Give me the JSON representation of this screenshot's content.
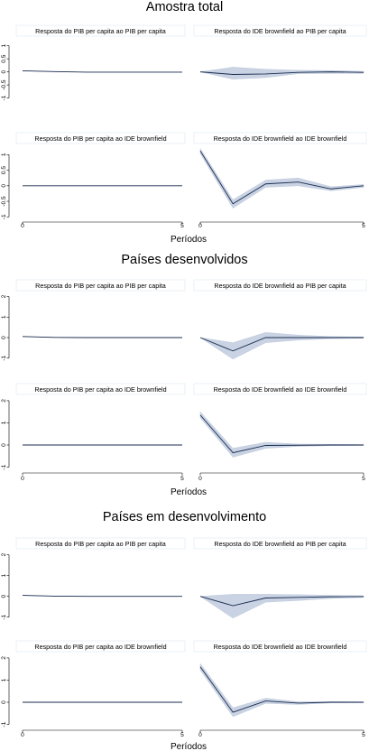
{
  "chart_data": [
    {
      "group_title": "Amostra total",
      "xlabel": "Períodos",
      "x_ticks": [
        0,
        5
      ],
      "panels": [
        {
          "type": "line",
          "title": "Resposta do PIB per capita ao PIB per capita",
          "yticks": [
            -1,
            -0.5,
            0,
            0.5,
            1
          ],
          "ylim": [
            -1.05,
            1.3
          ],
          "x": [
            0,
            1,
            2,
            3,
            4,
            5
          ],
          "values": [
            0.04,
            0.01,
            -0.01,
            -0.01,
            -0.01,
            -0.01
          ],
          "lower": [
            0.04,
            0.01,
            -0.01,
            -0.01,
            -0.01,
            -0.01
          ],
          "upper": [
            0.04,
            0.01,
            -0.01,
            -0.01,
            -0.01,
            -0.01
          ]
        },
        {
          "type": "line",
          "title": "Resposta do IDE brownfield ao PIB per capita",
          "ylim": [
            -1.05,
            1.3
          ],
          "x": [
            0,
            1,
            2,
            3,
            4,
            5
          ],
          "values": [
            0,
            -0.1,
            -0.08,
            -0.02,
            0,
            -0.02
          ],
          "lower": [
            0,
            -0.28,
            -0.22,
            -0.07,
            -0.06,
            -0.06
          ],
          "upper": [
            0,
            0.18,
            0.1,
            0.06,
            0.05,
            0.02
          ]
        },
        {
          "type": "line",
          "title": "Resposta do PIB per capita ao IDE brownfield",
          "yticks": [
            -1,
            -0.5,
            0,
            0.5,
            1
          ],
          "ylim": [
            -1.05,
            1.3
          ],
          "x": [
            0,
            1,
            2,
            3,
            4,
            5
          ],
          "values": [
            0,
            0,
            0,
            0,
            0,
            0
          ],
          "lower": [
            0,
            0,
            0,
            0,
            0,
            0
          ],
          "upper": [
            0,
            0,
            0,
            0,
            0,
            0
          ]
        },
        {
          "type": "line",
          "title": "Resposta do IDE brownfield ao IDE brownfield",
          "ylim": [
            -1.05,
            1.3
          ],
          "x": [
            0,
            1,
            2,
            3,
            4,
            5
          ],
          "values": [
            1.12,
            -0.58,
            0.06,
            0.12,
            -0.1,
            0
          ],
          "lower": [
            1.03,
            -0.72,
            -0.05,
            0,
            -0.16,
            -0.05
          ],
          "upper": [
            1.2,
            -0.45,
            0.18,
            0.25,
            -0.03,
            0.04
          ]
        }
      ]
    },
    {
      "group_title": "Países desenvolvidos",
      "xlabel": "Períodos",
      "x_ticks": [
        0,
        5
      ],
      "panels": [
        {
          "type": "line",
          "title": "Resposta do PIB per capita ao PIB per capita",
          "yticks": [
            -1,
            0,
            1,
            2
          ],
          "ylim": [
            -1.1,
            2.2
          ],
          "x": [
            0,
            1,
            2,
            3,
            4,
            5
          ],
          "values": [
            0.05,
            0.01,
            0,
            0,
            0,
            0
          ],
          "lower": [
            0.05,
            0.01,
            0,
            0,
            0,
            0
          ],
          "upper": [
            0.05,
            0.01,
            0,
            0,
            0,
            0
          ]
        },
        {
          "type": "line",
          "title": "Resposta do IDE brownfield ao PIB per capita",
          "ylim": [
            -1.1,
            2.2
          ],
          "x": [
            0,
            1,
            2,
            3,
            4,
            5
          ],
          "values": [
            0,
            -0.65,
            0,
            0,
            0,
            0
          ],
          "lower": [
            0,
            -1.05,
            -0.25,
            -0.12,
            -0.05,
            -0.03
          ],
          "upper": [
            0,
            -0.25,
            0.25,
            0.12,
            0.05,
            0.03
          ]
        },
        {
          "type": "line",
          "title": "Resposta do PIB per capita ao IDE brownfield",
          "yticks": [
            -1,
            0,
            1,
            2
          ],
          "ylim": [
            -1.1,
            2.2
          ],
          "x": [
            0,
            1,
            2,
            3,
            4,
            5
          ],
          "values": [
            0,
            0,
            0,
            0,
            0,
            0
          ],
          "lower": [
            0,
            0,
            0,
            0,
            0,
            0
          ],
          "upper": [
            0,
            0,
            0,
            0,
            0,
            0
          ]
        },
        {
          "type": "line",
          "title": "Resposta do IDE brownfield ao IDE brownfield",
          "ylim": [
            -1.1,
            2.2
          ],
          "x": [
            0,
            1,
            2,
            3,
            4,
            5
          ],
          "values": [
            1.35,
            -0.35,
            -0.02,
            -0.01,
            0,
            0
          ],
          "lower": [
            1.22,
            -0.55,
            -0.15,
            -0.06,
            -0.03,
            -0.02
          ],
          "upper": [
            1.5,
            -0.15,
            0.12,
            0.04,
            0.03,
            0.02
          ]
        }
      ]
    },
    {
      "group_title": "Países em desenvolvimento",
      "xlabel": "Períodos",
      "x_ticks": [
        0,
        5
      ],
      "panels": [
        {
          "type": "line",
          "title": "Resposta do PIB per capita ao PIB per capita",
          "yticks": [
            -1,
            0,
            1,
            2
          ],
          "ylim": [
            -1.1,
            2.2
          ],
          "x": [
            0,
            1,
            2,
            3,
            4,
            5
          ],
          "values": [
            0.05,
            0.01,
            0,
            0,
            0,
            0
          ],
          "lower": [
            0.05,
            0.01,
            0,
            0,
            0,
            0
          ],
          "upper": [
            0.05,
            0.01,
            0,
            0,
            0,
            0
          ]
        },
        {
          "type": "line",
          "title": "Resposta do IDE brownfield ao PIB per capita",
          "ylim": [
            -1.1,
            2.2
          ],
          "x": [
            0,
            1,
            2,
            3,
            4,
            5
          ],
          "values": [
            0,
            -0.45,
            -0.08,
            -0.05,
            -0.02,
            -0.01
          ],
          "lower": [
            0,
            -1.05,
            -0.28,
            -0.2,
            -0.1,
            -0.05
          ],
          "upper": [
            0,
            0.1,
            0.1,
            0.08,
            0.05,
            0.03
          ]
        },
        {
          "type": "line",
          "title": "Resposta do PIB per capita ao IDE brownfield",
          "yticks": [
            -1,
            0,
            1,
            2
          ],
          "ylim": [
            -1.1,
            2.2
          ],
          "x": [
            0,
            1,
            2,
            3,
            4,
            5
          ],
          "values": [
            0,
            0,
            0,
            0,
            0,
            0
          ],
          "lower": [
            0,
            0,
            0,
            0,
            0,
            0
          ],
          "upper": [
            0,
            0,
            0,
            0,
            0,
            0
          ]
        },
        {
          "type": "line",
          "title": "Resposta do IDE brownfield ao IDE brownfield",
          "ylim": [
            -1.1,
            2.2
          ],
          "x": [
            0,
            1,
            2,
            3,
            4,
            5
          ],
          "values": [
            1.6,
            -0.45,
            0.06,
            -0.04,
            0,
            0
          ],
          "lower": [
            1.45,
            -0.65,
            -0.05,
            -0.1,
            -0.03,
            -0.02
          ],
          "upper": [
            1.75,
            -0.25,
            0.18,
            0.02,
            0.03,
            0.02
          ]
        }
      ]
    }
  ]
}
